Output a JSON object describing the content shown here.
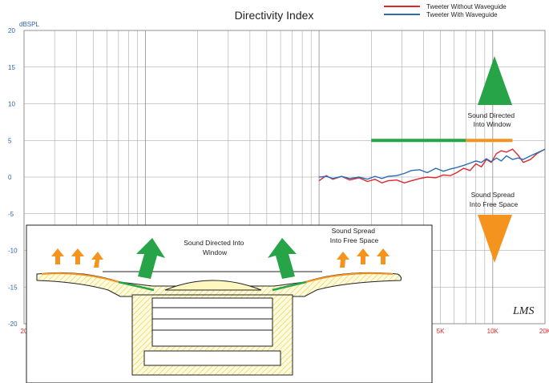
{
  "chart_data": {
    "type": "line",
    "title": "Directivity Index",
    "ylabel": "dBSPL",
    "xscale": "log",
    "xlim": [
      20,
      20000
    ],
    "ylim": [
      -20,
      20
    ],
    "xticks": [
      {
        "value": 20,
        "label": "20"
      },
      {
        "value": 5000,
        "label": "5K"
      },
      {
        "value": 10000,
        "label": "10K"
      },
      {
        "value": 20000,
        "label": "20K"
      }
    ],
    "yticks": [
      {
        "value": 20,
        "label": "20"
      },
      {
        "value": 15,
        "label": "15"
      },
      {
        "value": 10,
        "label": "10"
      },
      {
        "value": 5,
        "label": "5"
      },
      {
        "value": 0,
        "label": "0"
      },
      {
        "value": -5,
        "label": "-5"
      },
      {
        "value": -10,
        "label": "-10"
      },
      {
        "value": -15,
        "label": "-15"
      },
      {
        "value": -20,
        "label": "-20"
      }
    ],
    "grid": true,
    "legend_position": "top-right",
    "series": [
      {
        "name": "Tweeter Without Waveguide",
        "color": "#e0252c",
        "x": [
          1000,
          1100,
          1200,
          1350,
          1500,
          1700,
          1900,
          2100,
          2300,
          2500,
          2800,
          3100,
          3400,
          3800,
          4200,
          4700,
          5200,
          5700,
          6200,
          6800,
          7400,
          8000,
          8600,
          9200,
          9800,
          10500,
          11200,
          12000,
          13000,
          14000,
          15000,
          16500,
          18000,
          20000
        ],
        "y": [
          -0.5,
          0.2,
          -0.3,
          0.1,
          -0.4,
          -0.1,
          -0.6,
          -0.3,
          -0.8,
          -0.5,
          -0.4,
          -0.8,
          -0.5,
          -0.2,
          0.0,
          -0.1,
          0.3,
          0.2,
          0.6,
          1.2,
          0.9,
          1.8,
          1.4,
          2.4,
          2.0,
          3.2,
          3.6,
          3.4,
          3.8,
          3.0,
          2.0,
          2.4,
          3.2,
          3.8
        ]
      },
      {
        "name": "Tweeter With Waveguide",
        "color": "#2a6db5",
        "x": [
          1000,
          1100,
          1200,
          1350,
          1500,
          1700,
          1900,
          2100,
          2300,
          2500,
          2800,
          3100,
          3400,
          3800,
          4200,
          4700,
          5200,
          5700,
          6200,
          6800,
          7400,
          8000,
          8600,
          9200,
          9800,
          10500,
          11200,
          12000,
          13000,
          14000,
          15000,
          16500,
          18000,
          20000
        ],
        "y": [
          0.0,
          0.1,
          -0.2,
          0.1,
          -0.2,
          0.0,
          -0.3,
          0.1,
          -0.2,
          0.1,
          0.2,
          0.5,
          0.9,
          1.0,
          0.6,
          1.2,
          0.8,
          1.1,
          1.3,
          1.6,
          1.9,
          2.2,
          2.0,
          2.5,
          2.1,
          2.6,
          2.2,
          2.9,
          2.4,
          2.6,
          2.4,
          2.9,
          3.3,
          3.8
        ]
      }
    ],
    "bands": [
      {
        "from": 2000,
        "to": 7000,
        "y": 5,
        "color": "#27a447"
      },
      {
        "from": 7000,
        "to": 13000,
        "y": 5,
        "color": "#f5931f"
      }
    ],
    "annotations": [
      {
        "text": "Sound Directed\nInto Window"
      },
      {
        "text": "Sound Spread\nInto Free Space"
      }
    ],
    "watermark": "LMS"
  },
  "inset": {
    "label_center": "Sound Directed Into\nWindow",
    "label_right": "Sound Spread\nInto Free Space"
  }
}
